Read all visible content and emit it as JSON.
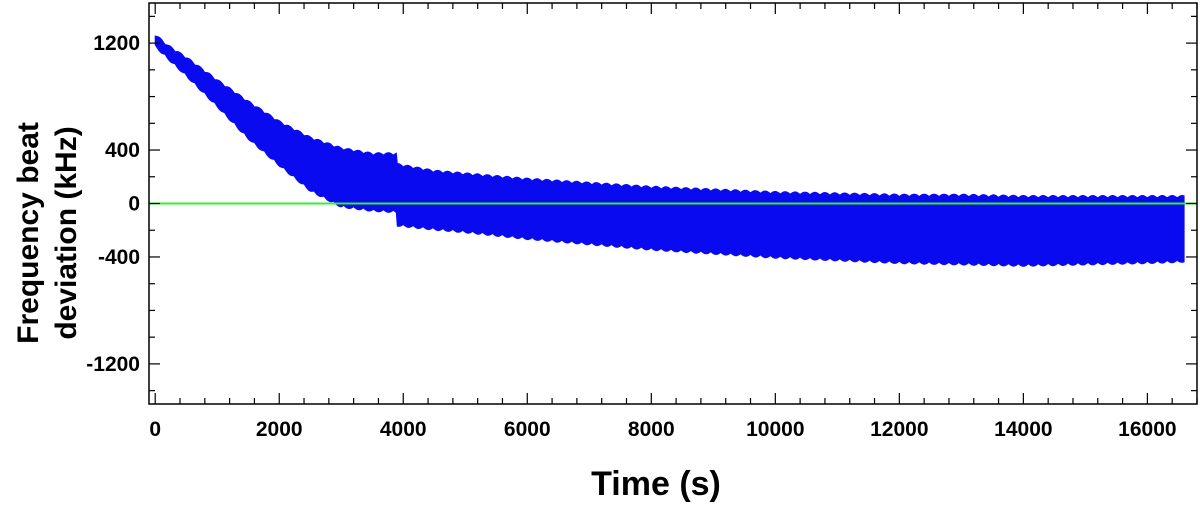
{
  "chart_data": {
    "type": "area",
    "title": "",
    "xlabel": "Time (s)",
    "ylabel_lines": [
      "Frequency beat",
      "deviation (kHz)"
    ],
    "xlim": [
      -100,
      16800
    ],
    "ylim": [
      -1500,
      1500
    ],
    "xticks": [
      0,
      2000,
      4000,
      6000,
      8000,
      10000,
      12000,
      14000,
      16000
    ],
    "yticks": [
      1200,
      400,
      0,
      -400,
      -1200
    ],
    "grid": false,
    "legend": "none",
    "colors": {
      "band": "#0a0af0",
      "zero_line": "#33ee33",
      "axis": "#000000"
    },
    "series": [
      {
        "kind": "band",
        "x": [
          0,
          200,
          500,
          1000,
          1500,
          2000,
          2500,
          3000,
          3500,
          3900,
          3901,
          4500,
          5000,
          6000,
          7000,
          8000,
          9000,
          10000,
          11000,
          12000,
          13000,
          14000,
          15000,
          16000,
          16600
        ],
        "upper": [
          1270,
          1190,
          1100,
          930,
          770,
          620,
          500,
          420,
          380,
          380,
          300,
          250,
          230,
          190,
          160,
          130,
          110,
          90,
          80,
          70,
          70,
          60,
          60,
          60,
          60
        ],
        "lower": [
          1170,
          1080,
          950,
          720,
          480,
          280,
          90,
          -30,
          -60,
          -70,
          -170,
          -200,
          -220,
          -270,
          -310,
          -350,
          -380,
          -410,
          -430,
          -450,
          -460,
          -470,
          -460,
          -450,
          -440
        ]
      },
      {
        "kind": "reference",
        "y": 0
      }
    ]
  }
}
